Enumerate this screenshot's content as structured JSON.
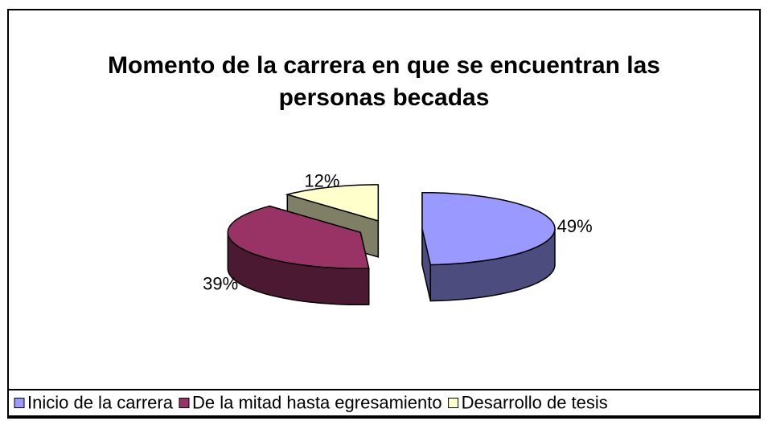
{
  "chart_data": {
    "type": "pie3d",
    "title": "Momento de la carrera en que se encuentran las personas becadas",
    "categories": [
      "Inicio de la carrera",
      "De la mitad hasta egresamiento",
      "Desarrollo de tesis"
    ],
    "values": [
      49,
      39,
      12
    ],
    "value_labels": [
      "49%",
      "39%",
      "12%"
    ],
    "colors": [
      "#9999ff",
      "#993366",
      "#ffffcc"
    ],
    "legend": "bottom"
  }
}
